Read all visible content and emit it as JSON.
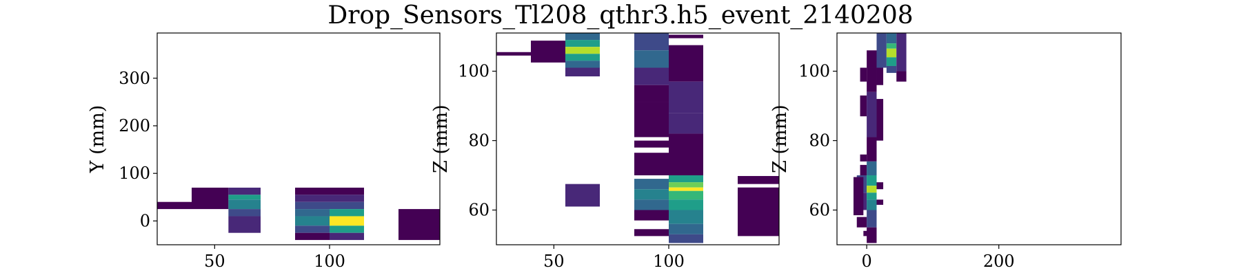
{
  "title": "Drop_Sensors_Tl208_qthr3.h5_event_2140208",
  "colors": {
    "viridis": [
      "#440154",
      "#482878",
      "#3e4a89",
      "#31688e",
      "#26828e",
      "#1f9e89",
      "#35b779",
      "#6ece58",
      "#b5de2b",
      "#fde725"
    ]
  },
  "chart_data": [
    {
      "type": "heatmap",
      "xlabel": "",
      "ylabel": "Y (mm)",
      "xlim": [
        25,
        148
      ],
      "ylim": [
        -50,
        395
      ],
      "xticks": [
        {
          "v": 50,
          "label": "50"
        },
        {
          "v": 100,
          "label": "100"
        }
      ],
      "yticks": [
        {
          "v": 0,
          "label": "0"
        },
        {
          "v": 100,
          "label": "100"
        },
        {
          "v": 200,
          "label": "200"
        },
        {
          "v": 300,
          "label": "300"
        }
      ],
      "cells": [
        {
          "x": [
            25,
            40
          ],
          "y": [
            25,
            40
          ],
          "v": 0.0
        },
        {
          "x": [
            40,
            56
          ],
          "y": [
            25,
            70
          ],
          "v": 0.0
        },
        {
          "x": [
            56,
            70
          ],
          "y": [
            55,
            70
          ],
          "v": 0.1
        },
        {
          "x": [
            56,
            70
          ],
          "y": [
            45,
            55
          ],
          "v": 0.5
        },
        {
          "x": [
            56,
            70
          ],
          "y": [
            25,
            45
          ],
          "v": 0.4
        },
        {
          "x": [
            56,
            70
          ],
          "y": [
            10,
            25
          ],
          "v": 0.2
        },
        {
          "x": [
            56,
            70
          ],
          "y": [
            -25,
            10
          ],
          "v": 0.1
        },
        {
          "x": [
            85,
            100
          ],
          "y": [
            55,
            70
          ],
          "v": 0.0
        },
        {
          "x": [
            85,
            100
          ],
          "y": [
            40,
            55
          ],
          "v": 0.1
        },
        {
          "x": [
            85,
            100
          ],
          "y": [
            25,
            40
          ],
          "v": 0.2
        },
        {
          "x": [
            85,
            100
          ],
          "y": [
            10,
            25
          ],
          "v": 0.3
        },
        {
          "x": [
            85,
            100
          ],
          "y": [
            -10,
            10
          ],
          "v": 0.45
        },
        {
          "x": [
            85,
            100
          ],
          "y": [
            -25,
            -10
          ],
          "v": 0.25
        },
        {
          "x": [
            85,
            100
          ],
          "y": [
            -40,
            -25
          ],
          "v": 0.0
        },
        {
          "x": [
            100,
            115
          ],
          "y": [
            55,
            70
          ],
          "v": 0.0
        },
        {
          "x": [
            100,
            115
          ],
          "y": [
            40,
            55
          ],
          "v": 0.1
        },
        {
          "x": [
            100,
            115
          ],
          "y": [
            25,
            40
          ],
          "v": 0.25
        },
        {
          "x": [
            100,
            115
          ],
          "y": [
            10,
            25
          ],
          "v": 0.5
        },
        {
          "x": [
            100,
            115
          ],
          "y": [
            -10,
            10
          ],
          "v": 1.0
        },
        {
          "x": [
            100,
            115
          ],
          "y": [
            -25,
            -10
          ],
          "v": 0.55
        },
        {
          "x": [
            100,
            115
          ],
          "y": [
            -40,
            -25
          ],
          "v": 0.1
        },
        {
          "x": [
            130,
            148
          ],
          "y": [
            -40,
            25
          ],
          "v": 0.05
        }
      ]
    },
    {
      "type": "heatmap",
      "xlabel": "",
      "ylabel": "Z (mm)",
      "xlim": [
        25,
        148
      ],
      "ylim": [
        50,
        111
      ],
      "xticks": [
        {
          "v": 50,
          "label": "50"
        },
        {
          "v": 100,
          "label": "100"
        }
      ],
      "yticks": [
        {
          "v": 60,
          "label": "60"
        },
        {
          "v": 80,
          "label": "80"
        },
        {
          "v": 100,
          "label": "100"
        }
      ],
      "cells": [
        {
          "x": [
            25,
            40
          ],
          "y": [
            104.5,
            105.5
          ],
          "v": 0.0
        },
        {
          "x": [
            40,
            55
          ],
          "y": [
            102.5,
            108.8
          ],
          "v": 0.0
        },
        {
          "x": [
            55,
            70
          ],
          "y": [
            109,
            111
          ],
          "v": 0.35
        },
        {
          "x": [
            55,
            70
          ],
          "y": [
            107,
            109
          ],
          "v": 0.6
        },
        {
          "x": [
            55,
            70
          ],
          "y": [
            105,
            107
          ],
          "v": 0.9
        },
        {
          "x": [
            55,
            70
          ],
          "y": [
            103,
            105
          ],
          "v": 0.55
        },
        {
          "x": [
            55,
            70
          ],
          "y": [
            101,
            103
          ],
          "v": 0.3
        },
        {
          "x": [
            55,
            70
          ],
          "y": [
            98.5,
            101
          ],
          "v": 0.1
        },
        {
          "x": [
            55,
            70
          ],
          "y": [
            61,
            67.5
          ],
          "v": 0.1
        },
        {
          "x": [
            85,
            100
          ],
          "y": [
            106,
            111
          ],
          "v": 0.2
        },
        {
          "x": [
            85,
            100
          ],
          "y": [
            101,
            106
          ],
          "v": 0.3
        },
        {
          "x": [
            85,
            100
          ],
          "y": [
            96,
            101
          ],
          "v": 0.15
        },
        {
          "x": [
            85,
            100
          ],
          "y": [
            91,
            96
          ],
          "v": 0.05
        },
        {
          "x": [
            85,
            100
          ],
          "y": [
            81,
            91
          ],
          "v": 0.0
        },
        {
          "x": [
            85,
            100
          ],
          "y": [
            78,
            80
          ],
          "v": 0.0
        },
        {
          "x": [
            85,
            100
          ],
          "y": [
            70,
            76.5
          ],
          "v": 0.0
        },
        {
          "x": [
            85,
            100
          ],
          "y": [
            66,
            69
          ],
          "v": 0.3
        },
        {
          "x": [
            85,
            100
          ],
          "y": [
            63,
            66
          ],
          "v": 0.45
        },
        {
          "x": [
            85,
            100
          ],
          "y": [
            60,
            63
          ],
          "v": 0.3
        },
        {
          "x": [
            85,
            100
          ],
          "y": [
            57,
            60
          ],
          "v": 0.0
        },
        {
          "x": [
            85,
            100
          ],
          "y": [
            52.5,
            54.5
          ],
          "v": 0.0
        },
        {
          "x": [
            100,
            115
          ],
          "y": [
            109.5,
            110.5
          ],
          "v": 0.0
        },
        {
          "x": [
            100,
            115
          ],
          "y": [
            97,
            107.5
          ],
          "v": 0.05
        },
        {
          "x": [
            100,
            115
          ],
          "y": [
            88,
            97
          ],
          "v": 0.15
        },
        {
          "x": [
            100,
            115
          ],
          "y": [
            82,
            88
          ],
          "v": 0.1
        },
        {
          "x": [
            100,
            115
          ],
          "y": [
            70,
            82
          ],
          "v": 0.05
        },
        {
          "x": [
            100,
            115
          ],
          "y": [
            68,
            70
          ],
          "v": 0.5
        },
        {
          "x": [
            100,
            115
          ],
          "y": [
            66.5,
            68
          ],
          "v": 0.8
        },
        {
          "x": [
            100,
            115
          ],
          "y": [
            65.5,
            66.5
          ],
          "v": 1.0
        },
        {
          "x": [
            100,
            115
          ],
          "y": [
            63,
            65.5
          ],
          "v": 0.7
        },
        {
          "x": [
            100,
            115
          ],
          "y": [
            60,
            63
          ],
          "v": 0.55
        },
        {
          "x": [
            100,
            115
          ],
          "y": [
            56,
            60
          ],
          "v": 0.45
        },
        {
          "x": [
            100,
            115
          ],
          "y": [
            53,
            56
          ],
          "v": 0.35
        },
        {
          "x": [
            100,
            115
          ],
          "y": [
            50.5,
            53
          ],
          "v": 0.25
        },
        {
          "x": [
            130,
            148
          ],
          "y": [
            67.5,
            69.8
          ],
          "v": 0.0
        },
        {
          "x": [
            130,
            148
          ],
          "y": [
            52.5,
            66.5
          ],
          "v": 0.05
        }
      ]
    },
    {
      "type": "heatmap",
      "xlabel": "",
      "ylabel": "Z (mm)",
      "xlim": [
        -45,
        385
      ],
      "ylim": [
        50,
        111
      ],
      "xticks": [
        {
          "v": 0,
          "label": "0"
        },
        {
          "v": 200,
          "label": "200"
        }
      ],
      "yticks": [
        {
          "v": 60,
          "label": "60"
        },
        {
          "v": 80,
          "label": "80"
        },
        {
          "v": 100,
          "label": "100"
        }
      ],
      "cells": [
        {
          "x": [
            -45,
            -40
          ],
          "y": [
            0,
            0
          ],
          "v": 0.0
        },
        {
          "x": [
            -15,
            0
          ],
          "y": [
            65,
            70
          ],
          "v": 0.2
        },
        {
          "x": [
            -15,
            0
          ],
          "y": [
            60,
            65
          ],
          "v": 0.15
        },
        {
          "x": [
            -20,
            -5
          ],
          "y": [
            58.5,
            69.5
          ],
          "v": 0.0
        },
        {
          "x": [
            -15,
            0
          ],
          "y": [
            55,
            58
          ],
          "v": 0.0
        },
        {
          "x": [
            -5,
            5
          ],
          "y": [
            52.5,
            54
          ],
          "v": 0.0
        },
        {
          "x": [
            -10,
            0
          ],
          "y": [
            97,
            101
          ],
          "v": 0.0
        },
        {
          "x": [
            -10,
            0
          ],
          "y": [
            87,
            93
          ],
          "v": 0.0
        },
        {
          "x": [
            -10,
            0
          ],
          "y": [
            74,
            76
          ],
          "v": 0.0
        },
        {
          "x": [
            -10,
            0
          ],
          "y": [
            70,
            73
          ],
          "v": 0.05
        },
        {
          "x": [
            0,
            15
          ],
          "y": [
            101,
            106
          ],
          "v": 0.05
        },
        {
          "x": [
            0,
            15
          ],
          "y": [
            94,
            101
          ],
          "v": 0.05
        },
        {
          "x": [
            0,
            15
          ],
          "y": [
            81,
            94
          ],
          "v": 0.15
        },
        {
          "x": [
            0,
            15
          ],
          "y": [
            74,
            81
          ],
          "v": 0.05
        },
        {
          "x": [
            0,
            15
          ],
          "y": [
            70,
            74
          ],
          "v": 0.3
        },
        {
          "x": [
            0,
            15
          ],
          "y": [
            67,
            70
          ],
          "v": 0.5
        },
        {
          "x": [
            0,
            15
          ],
          "y": [
            65,
            67
          ],
          "v": 0.9
        },
        {
          "x": [
            0,
            15
          ],
          "y": [
            63,
            65
          ],
          "v": 0.6
        },
        {
          "x": [
            0,
            15
          ],
          "y": [
            60,
            63
          ],
          "v": 0.4
        },
        {
          "x": [
            0,
            15
          ],
          "y": [
            55,
            60
          ],
          "v": 0.2
        },
        {
          "x": [
            0,
            15
          ],
          "y": [
            50.5,
            55
          ],
          "v": 0.05
        },
        {
          "x": [
            15,
            25
          ],
          "y": [
            66,
            68
          ],
          "v": 0.0
        },
        {
          "x": [
            15,
            25
          ],
          "y": [
            61.5,
            63
          ],
          "v": 0.0
        },
        {
          "x": [
            15,
            25
          ],
          "y": [
            80,
            92
          ],
          "v": 0.05
        },
        {
          "x": [
            15,
            25
          ],
          "y": [
            96,
            101
          ],
          "v": 0.05
        },
        {
          "x": [
            15,
            30
          ],
          "y": [
            101,
            111
          ],
          "v": 0.25
        },
        {
          "x": [
            30,
            45
          ],
          "y": [
            108,
            111
          ],
          "v": 0.35
        },
        {
          "x": [
            30,
            45
          ],
          "y": [
            106.5,
            108
          ],
          "v": 0.65
        },
        {
          "x": [
            30,
            45
          ],
          "y": [
            104,
            106.5
          ],
          "v": 0.85
        },
        {
          "x": [
            30,
            45
          ],
          "y": [
            101.5,
            104
          ],
          "v": 0.55
        },
        {
          "x": [
            30,
            45
          ],
          "y": [
            99.5,
            101.5
          ],
          "v": 0.2
        },
        {
          "x": [
            45,
            60
          ],
          "y": [
            100,
            111
          ],
          "v": 0.15
        },
        {
          "x": [
            45,
            60
          ],
          "y": [
            97,
            100
          ],
          "v": 0.0
        }
      ]
    }
  ]
}
